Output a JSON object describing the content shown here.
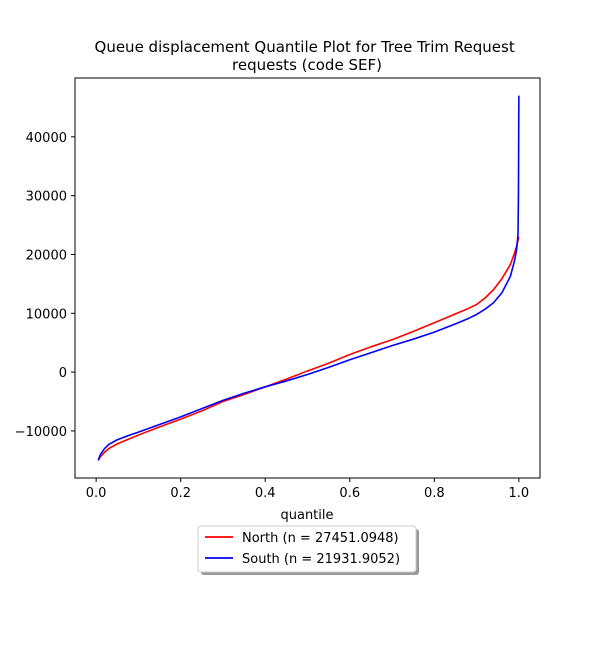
{
  "chart_data": {
    "type": "line",
    "title": "Queue displacement Quantile Plot for Tree Trim Request requests (code SEF)",
    "title_lines": [
      "Queue displacement Quantile Plot for Tree Trim Request",
      "requests (code SEF)"
    ],
    "xlabel": "quantile",
    "ylabel": "",
    "xlim": [
      -0.05,
      1.05
    ],
    "ylim": [
      -18000,
      50000
    ],
    "xticks": [
      0.0,
      0.2,
      0.4,
      0.6,
      0.8,
      1.0
    ],
    "xtick_labels": [
      "0.0",
      "0.2",
      "0.4",
      "0.6",
      "0.8",
      "1.0"
    ],
    "yticks": [
      -10000,
      0,
      10000,
      20000,
      30000,
      40000
    ],
    "ytick_labels": [
      "−10000",
      "0",
      "10000",
      "20000",
      "30000",
      "40000"
    ],
    "grid": false,
    "legend_position": "below-center",
    "series": [
      {
        "name": "North (n = 27451.0948)",
        "color": "#ff0000",
        "x": [
          0.005,
          0.01,
          0.02,
          0.03,
          0.05,
          0.08,
          0.1,
          0.15,
          0.2,
          0.25,
          0.3,
          0.35,
          0.4,
          0.45,
          0.5,
          0.55,
          0.6,
          0.65,
          0.7,
          0.75,
          0.8,
          0.85,
          0.88,
          0.9,
          0.92,
          0.94,
          0.96,
          0.98,
          0.99,
          0.995,
          1.0
        ],
        "values": [
          -15000,
          -14400,
          -13600,
          -13000,
          -12200,
          -11300,
          -10700,
          -9300,
          -8000,
          -6600,
          -5000,
          -3800,
          -2500,
          -1200,
          200,
          1500,
          3000,
          4300,
          5500,
          6900,
          8400,
          9900,
          10800,
          11500,
          12600,
          14000,
          15900,
          18300,
          20300,
          21500,
          23000
        ]
      },
      {
        "name": "South (n = 21931.9052)",
        "color": "#0000ff",
        "x": [
          0.005,
          0.01,
          0.02,
          0.03,
          0.05,
          0.08,
          0.1,
          0.15,
          0.2,
          0.25,
          0.3,
          0.35,
          0.4,
          0.45,
          0.5,
          0.55,
          0.6,
          0.65,
          0.7,
          0.75,
          0.8,
          0.85,
          0.88,
          0.9,
          0.92,
          0.94,
          0.96,
          0.98,
          0.99,
          0.995,
          0.998,
          0.999,
          1.0
        ],
        "values": [
          -15000,
          -14000,
          -13000,
          -12300,
          -11500,
          -10700,
          -10200,
          -8900,
          -7600,
          -6200,
          -4800,
          -3600,
          -2500,
          -1500,
          -400,
          800,
          2100,
          3300,
          4500,
          5600,
          6800,
          8200,
          9100,
          9800,
          10700,
          11800,
          13500,
          16300,
          19000,
          21000,
          23500,
          30000,
          47000
        ]
      }
    ]
  }
}
